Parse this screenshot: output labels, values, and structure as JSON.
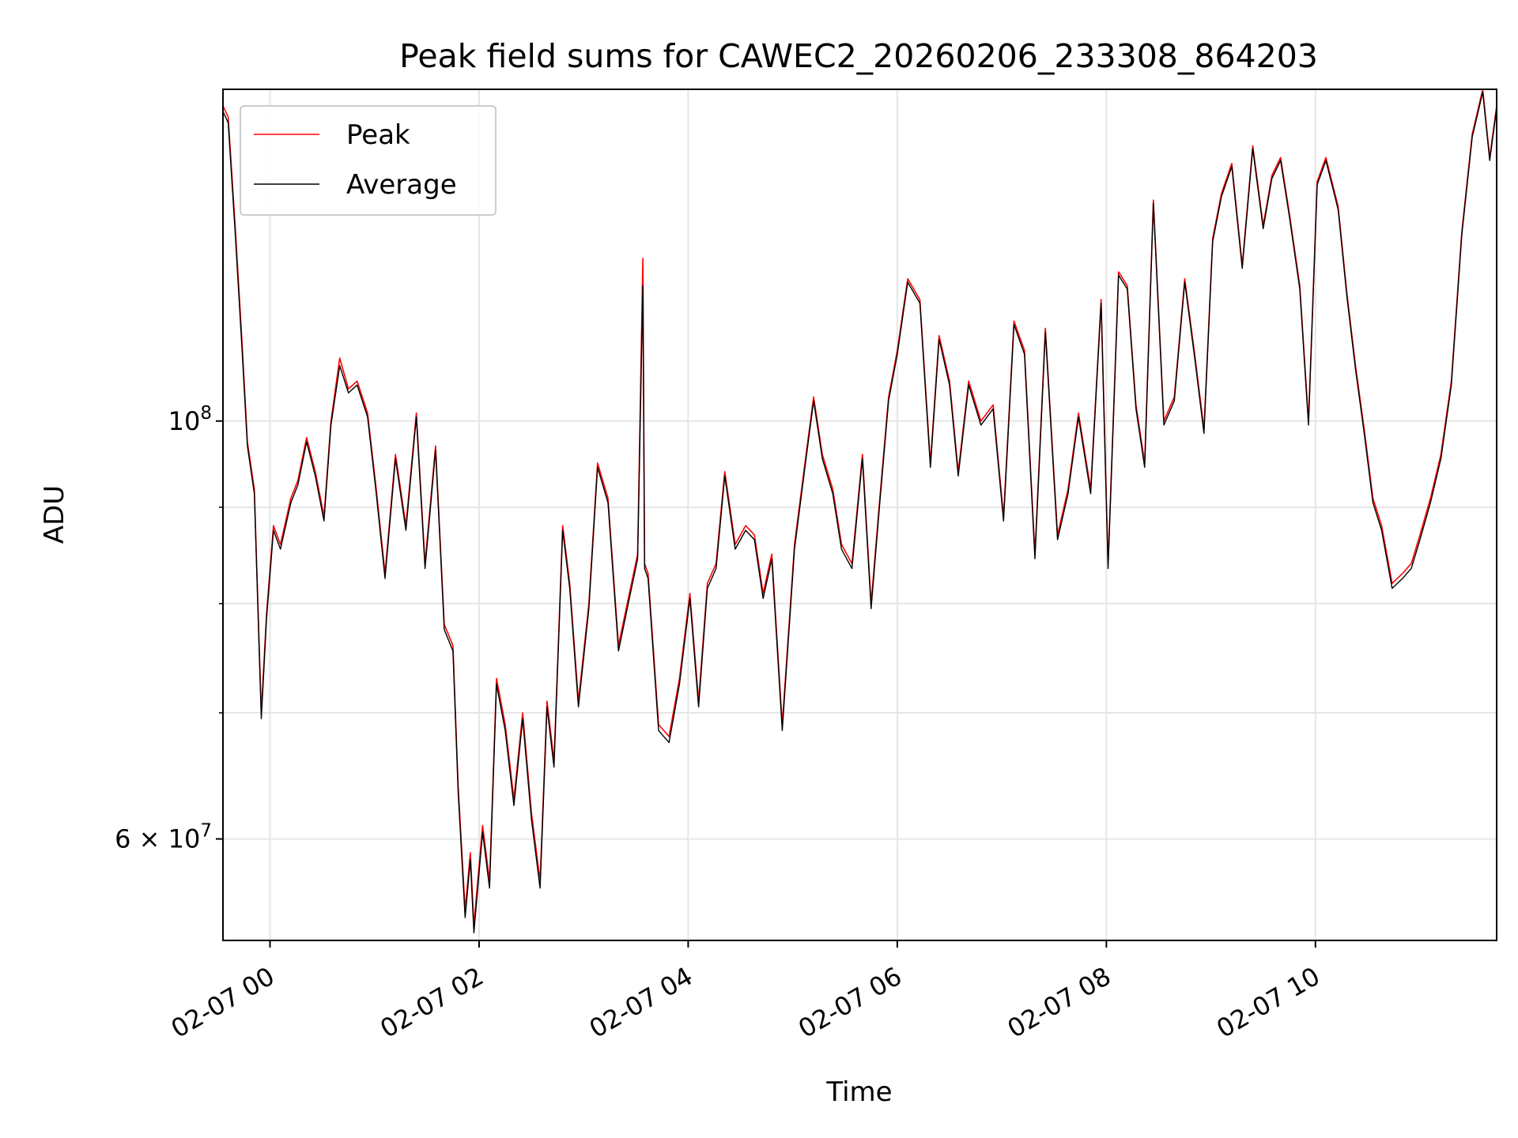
{
  "chart_data": {
    "type": "line",
    "title": "Peak field sums for CAWEC2_20260206_233308_864203",
    "xlabel": "Time",
    "ylabel": "ADU",
    "y_scale": "log",
    "ylim": [
      53000000,
      150000000
    ],
    "xlim": [
      "02-06 23:33",
      "02-07 11:44"
    ],
    "x_ticks": [
      "02-07 00",
      "02-07 02",
      "02-07 04",
      "02-07 06",
      "02-07 08",
      "02-07 10"
    ],
    "y_tick_labels": [
      {
        "value": 60000000,
        "label": "6 × 10",
        "exp": "7"
      },
      {
        "value": 100000000,
        "label": "10",
        "exp": "8"
      }
    ],
    "y_minor_ticks": [
      70000000,
      80000000,
      90000000
    ],
    "grid": true,
    "legend_position": "upper-left",
    "legend": [
      "Peak",
      "Average"
    ],
    "colors": {
      "Peak": "#ff0000",
      "Average": "#000000"
    },
    "x": [
      "02-06 23:33",
      "02-06 23:36",
      "02-06 23:40",
      "02-06 23:44",
      "02-06 23:47",
      "02-06 23:51",
      "02-06 23:55",
      "02-06 23:58",
      "02-07 00:02",
      "02-07 00:06",
      "02-07 00:12",
      "02-07 00:16",
      "02-07 00:21",
      "02-07 00:26",
      "02-07 00:31",
      "02-07 00:35",
      "02-07 00:40",
      "02-07 00:45",
      "02-07 00:50",
      "02-07 00:56",
      "02-07 01:01",
      "02-07 01:06",
      "02-07 01:12",
      "02-07 01:18",
      "02-07 01:24",
      "02-07 01:29",
      "02-07 01:35",
      "02-07 01:40",
      "02-07 01:45",
      "02-07 01:48",
      "02-07 01:52",
      "02-07 01:55",
      "02-07 01:57",
      "02-07 02:02",
      "02-07 02:06",
      "02-07 02:10",
      "02-07 02:15",
      "02-07 02:20",
      "02-07 02:25",
      "02-07 02:30",
      "02-07 02:35",
      "02-07 02:39",
      "02-07 02:43",
      "02-07 02:48",
      "02-07 02:52",
      "02-07 02:57",
      "02-07 03:03",
      "02-07 03:08",
      "02-07 03:14",
      "02-07 03:20",
      "02-07 03:25",
      "02-07 03:31",
      "02-07 03:34",
      "02-07 03:35",
      "02-07 03:37",
      "02-07 03:43",
      "02-07 03:49",
      "02-07 03:55",
      "02-07 04:01",
      "02-07 04:06",
      "02-07 04:11",
      "02-07 04:16",
      "02-07 04:21",
      "02-07 04:27",
      "02-07 04:33",
      "02-07 04:38",
      "02-07 04:43",
      "02-07 04:48",
      "02-07 04:54",
      "02-07 05:01",
      "02-07 05:07",
      "02-07 05:12",
      "02-07 05:17",
      "02-07 05:23",
      "02-07 05:28",
      "02-07 05:34",
      "02-07 05:40",
      "02-07 05:45",
      "02-07 05:50",
      "02-07 05:55",
      "02-07 06:00",
      "02-07 06:06",
      "02-07 06:13",
      "02-07 06:19",
      "02-07 06:24",
      "02-07 06:30",
      "02-07 06:35",
      "02-07 06:41",
      "02-07 06:48",
      "02-07 06:55",
      "02-07 07:01",
      "02-07 07:07",
      "02-07 07:13",
      "02-07 07:19",
      "02-07 07:25",
      "02-07 07:32",
      "02-07 07:38",
      "02-07 07:44",
      "02-07 07:51",
      "02-07 07:57",
      "02-07 08:01",
      "02-07 08:07",
      "02-07 08:12",
      "02-07 08:17",
      "02-07 08:22",
      "02-07 08:27",
      "02-07 08:33",
      "02-07 08:39",
      "02-07 08:45",
      "02-07 08:51",
      "02-07 08:56",
      "02-07 09:01",
      "02-07 09:06",
      "02-07 09:12",
      "02-07 09:18",
      "02-07 09:24",
      "02-07 09:30",
      "02-07 09:35",
      "02-07 09:40",
      "02-07 09:45",
      "02-07 09:51",
      "02-07 09:56",
      "02-07 10:01",
      "02-07 10:06",
      "02-07 10:13",
      "02-07 10:18",
      "02-07 10:23",
      "02-07 10:28",
      "02-07 10:33",
      "02-07 10:38",
      "02-07 10:44",
      "02-07 10:50",
      "02-07 10:55",
      "02-07 11:00",
      "02-07 11:06",
      "02-07 11:12",
      "02-07 11:18",
      "02-07 11:24",
      "02-07 11:30",
      "02-07 11:36",
      "02-07 11:40",
      "02-07 11:44"
    ],
    "series": [
      {
        "name": "Peak",
        "values": [
          147000000,
          145000000,
          127000000,
          110000000,
          97500000,
          92000000,
          70000000,
          79000000,
          88000000,
          86000000,
          91000000,
          93000000,
          98000000,
          94000000,
          89000000,
          100000000,
          108000000,
          104000000,
          105000000,
          101000000,
          92000000,
          83000000,
          96000000,
          88000000,
          101000000,
          84000000,
          97000000,
          78000000,
          76000000,
          64000000,
          55000000,
          59000000,
          54000000,
          61000000,
          57000000,
          73000000,
          69000000,
          63000000,
          70000000,
          62000000,
          57000000,
          71000000,
          66000000,
          88000000,
          82000000,
          71000000,
          80000000,
          95000000,
          91000000,
          76000000,
          80000000,
          85000000,
          122000000,
          84000000,
          83000000,
          69000000,
          68000000,
          73000000,
          81000000,
          71000000,
          82000000,
          84000000,
          94000000,
          86000000,
          88000000,
          87000000,
          81000000,
          85000000,
          69000000,
          86000000,
          95000000,
          103000000,
          96000000,
          92000000,
          86000000,
          84000000,
          96000000,
          80000000,
          91000000,
          103000000,
          109000000,
          119000000,
          116000000,
          95000000,
          111000000,
          105000000,
          94000000,
          105000000,
          100000000,
          102000000,
          89000000,
          113000000,
          109000000,
          85000000,
          112000000,
          87000000,
          92000000,
          101000000,
          92000000,
          116000000,
          84000000,
          120000000,
          118000000,
          102000000,
          95000000,
          131000000,
          100000000,
          103000000,
          119000000,
          108000000,
          99000000,
          125000000,
          132000000,
          137000000,
          121000000,
          140000000,
          127000000,
          135000000,
          138000000,
          129000000,
          118000000,
          100000000,
          134000000,
          138000000,
          130000000,
          117000000,
          107000000,
          99000000,
          91000000,
          88000000,
          82000000,
          83000000,
          84000000,
          87000000,
          91000000,
          96000000,
          105000000,
          126000000,
          142000000,
          150000000,
          138000000,
          147000000
        ]
      },
      {
        "name": "Average",
        "values": [
          146000000,
          144000000,
          126000000,
          109000000,
          97000000,
          91500000,
          69500000,
          78500000,
          87500000,
          85500000,
          90500000,
          92500000,
          97500000,
          93500000,
          88500000,
          99500000,
          107000000,
          103500000,
          104500000,
          100500000,
          91500000,
          82500000,
          95500000,
          87500000,
          100500000,
          83500000,
          96500000,
          77500000,
          75500000,
          63500000,
          54500000,
          58500000,
          53500000,
          60500000,
          56500000,
          72500000,
          68500000,
          62500000,
          69500000,
          61500000,
          56500000,
          70500000,
          65500000,
          87500000,
          81500000,
          70500000,
          79500000,
          94500000,
          90500000,
          75500000,
          79500000,
          84500000,
          118000000,
          83500000,
          82500000,
          68500000,
          67500000,
          72500000,
          80500000,
          70500000,
          81500000,
          83500000,
          93500000,
          85500000,
          87500000,
          86500000,
          80500000,
          84500000,
          68500000,
          85500000,
          94500000,
          102500000,
          95500000,
          91500000,
          85500000,
          83500000,
          95500000,
          79500000,
          90500000,
          102500000,
          108500000,
          118500000,
          115500000,
          94500000,
          110500000,
          104500000,
          93500000,
          104500000,
          99500000,
          101500000,
          88500000,
          112500000,
          108500000,
          84500000,
          111500000,
          86500000,
          91500000,
          100500000,
          91500000,
          115500000,
          83500000,
          119500000,
          117500000,
          101500000,
          94500000,
          130500000,
          99500000,
          102500000,
          118500000,
          107500000,
          98500000,
          124500000,
          131500000,
          136500000,
          120500000,
          139500000,
          126500000,
          134500000,
          137500000,
          128500000,
          117500000,
          99500000,
          133500000,
          137500000,
          129500000,
          116500000,
          106500000,
          98500000,
          90500000,
          87500000,
          81500000,
          82500000,
          83500000,
          86500000,
          90500000,
          95500000,
          104500000,
          125500000,
          141500000,
          149500000,
          137500000,
          146500000
        ]
      }
    ]
  }
}
